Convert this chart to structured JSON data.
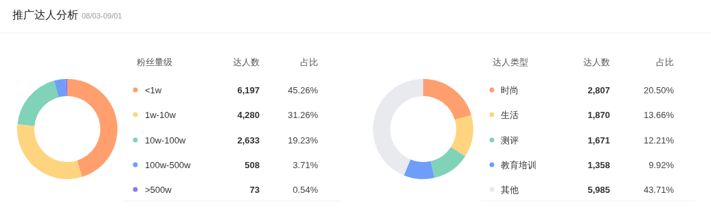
{
  "chart_data": [
    {
      "type": "donut",
      "title": "推广达人分析",
      "subtitle": "08/03-09/01",
      "legend_title": "粉丝量级",
      "legend": "right",
      "categories": [
        "<1w",
        "1w-10w",
        "10w-100w",
        "100w-500w",
        ">500w"
      ],
      "values": [
        6197,
        4280,
        2633,
        508,
        73
      ],
      "value_labels": [
        "6,197",
        "4,280",
        "2,633",
        "508",
        "73"
      ],
      "colors": [
        "#ff9f6e",
        "#ffd47f",
        "#80d2b9",
        "#6e9ef9",
        "#8b7bf5"
      ],
      "annotations": [
        "达人数",
        "占比",
        "45.26%",
        "31.26%",
        "19.23%",
        "3.71%",
        "0.54%"
      ]
    },
    {
      "type": "donut",
      "legend_title": "达人类型",
      "legend": "right",
      "categories": [
        "时尚",
        "生活",
        "测评",
        "教育培训",
        "其他"
      ],
      "values": [
        2807,
        1870,
        1671,
        1358,
        5985
      ],
      "value_labels": [
        "2,807",
        "1,870",
        "1,671",
        "1,358",
        "5,985"
      ],
      "colors": [
        "#ff9f6e",
        "#ffd47f",
        "#80d2b9",
        "#6e9ef9",
        "#e8eaef"
      ],
      "annotations": [
        "达人数",
        "占比",
        "20.50%",
        "13.66%",
        "12.21%",
        "9.92%",
        "43.71%"
      ]
    }
  ]
}
